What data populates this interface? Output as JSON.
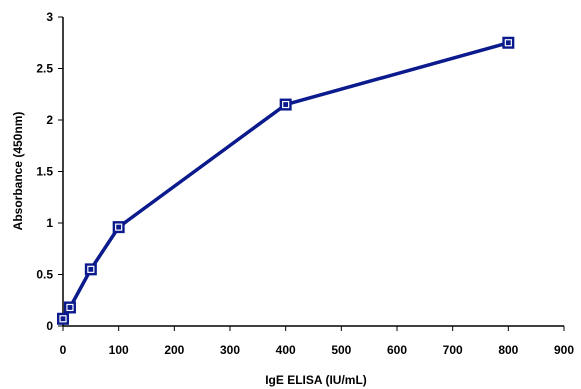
{
  "chart_data": {
    "type": "line",
    "xlabel": "IgE ELISA (IU/mL)",
    "ylabel": "Absorbance (450nm)",
    "xlim": [
      0,
      900
    ],
    "ylim": [
      0,
      3
    ],
    "x_ticks": [
      "0",
      "100",
      "200",
      "300",
      "400",
      "500",
      "600",
      "700",
      "800",
      "900"
    ],
    "y_ticks": [
      "0",
      "0.5",
      "1",
      "1.5",
      "2",
      "2.5",
      "3"
    ],
    "grid": false,
    "legend": "none",
    "series": [
      {
        "color": "#0b1a8c",
        "marker": "square",
        "x": [
          0,
          12.5,
          50,
          100,
          400,
          800
        ],
        "y": [
          0.07,
          0.18,
          0.55,
          0.96,
          2.15,
          2.75
        ]
      }
    ]
  }
}
